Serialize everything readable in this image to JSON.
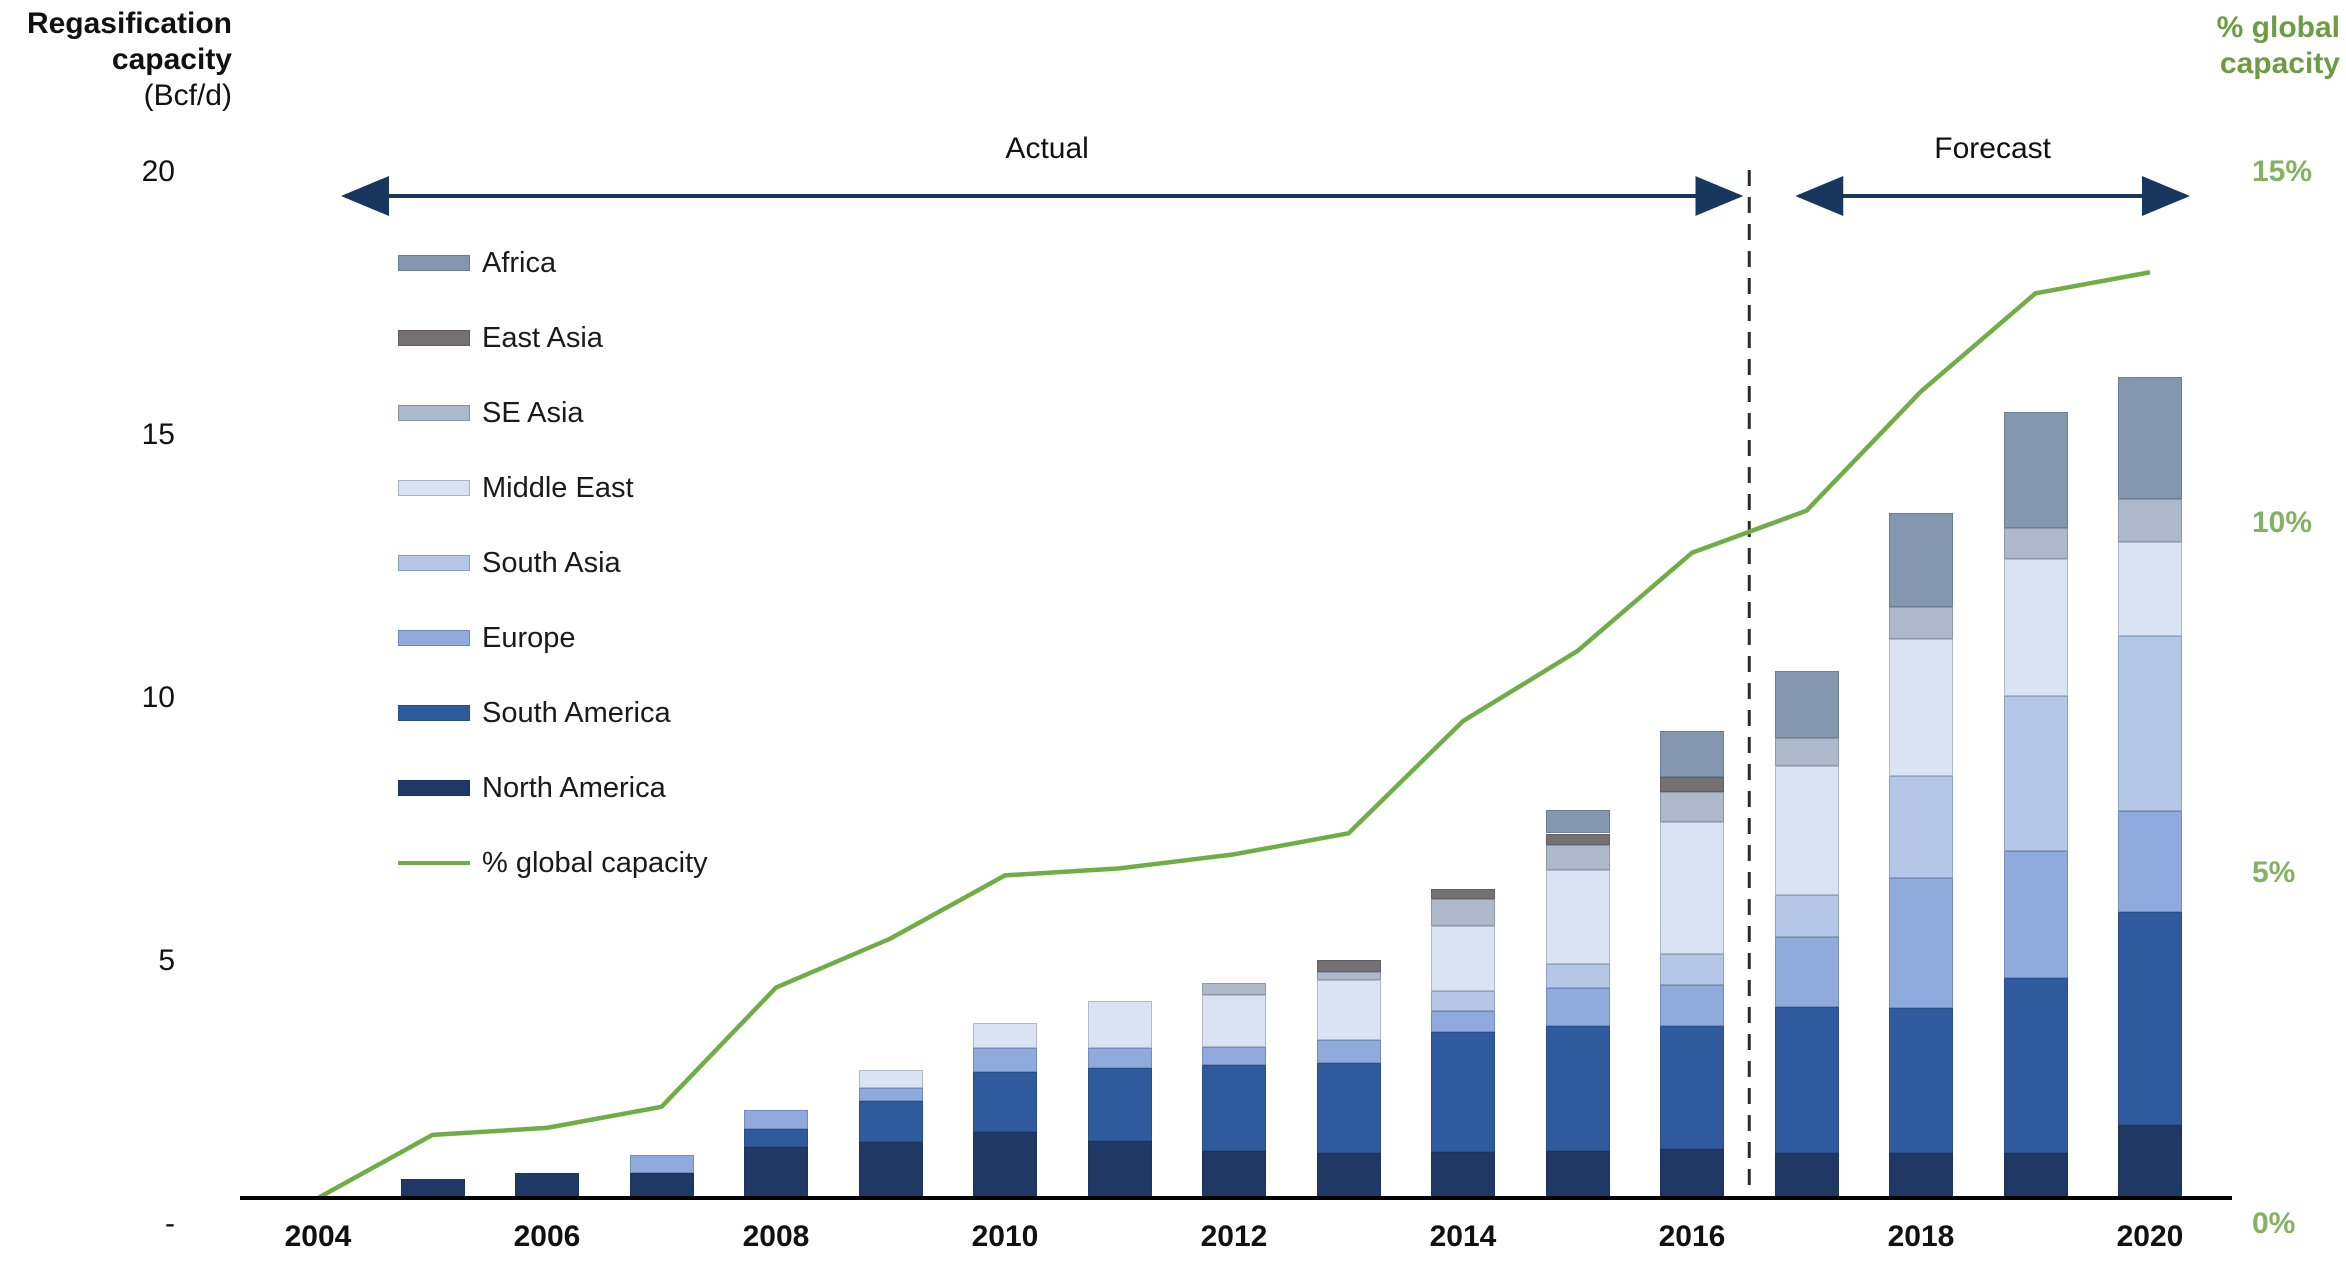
{
  "left_axis": {
    "title_line1": "Regasification",
    "title_line2": "capacity",
    "title_line3": "(Bcf/d)",
    "tick_labels": [
      "20",
      "15",
      "10",
      "5",
      "-"
    ],
    "tick_values": [
      20,
      15,
      10,
      5,
      0
    ]
  },
  "right_axis": {
    "title_line1": "% global",
    "title_line2": "capacity",
    "tick_labels": [
      "15%",
      "10%",
      "5%",
      "0%"
    ],
    "tick_values": [
      15,
      10,
      5,
      0
    ],
    "title_color": "#6d9c45",
    "tick_color": "#85b164"
  },
  "annotations": {
    "actual_label": "Actual",
    "forecast_label": "Forecast",
    "arrow_color": "#17375e",
    "divider_after_category": "2016"
  },
  "chart_data": {
    "type": "bar",
    "stacked": true,
    "grid": false,
    "categories": [
      "2004",
      "2005",
      "2006",
      "2007",
      "2008",
      "2009",
      "2010",
      "2011",
      "2012",
      "2013",
      "2014",
      "2015",
      "2016",
      "2017",
      "2018",
      "2019",
      "2020"
    ],
    "x_shown_tick_labels": [
      "2004",
      "2006",
      "2008",
      "2010",
      "2012",
      "2014",
      "2016",
      "2018",
      "2020"
    ],
    "xlabel": "",
    "ylabel_left": "Regasification capacity (Bcf/d)",
    "ylabel_right": "% global capacity",
    "ylim_left": [
      0,
      20
    ],
    "ylim_right": [
      0,
      15
    ],
    "legend_position": "upper-left-inside",
    "series": [
      {
        "name": "North America",
        "color": "#1F3864",
        "values": [
          0,
          0.36,
          0.47,
          0.47,
          0.97,
          1.06,
          1.25,
          1.08,
          0.89,
          0.85,
          0.87,
          0.9,
          0.93,
          0.85,
          0.85,
          0.85,
          1.39
        ]
      },
      {
        "name": "South America",
        "color": "#305A9E",
        "values": [
          0,
          0,
          0,
          0,
          0.35,
          0.79,
          1.15,
          1.39,
          1.64,
          1.71,
          2.28,
          2.37,
          2.34,
          2.79,
          2.77,
          3.34,
          4.04
        ]
      },
      {
        "name": "Europe",
        "color": "#8FAADC",
        "values": [
          0,
          0,
          0,
          0.35,
          0.35,
          0.25,
          0.45,
          0.38,
          0.35,
          0.44,
          0.4,
          0.73,
          0.78,
          1.33,
          2.47,
          2.41,
          1.93
        ]
      },
      {
        "name": "South Asia",
        "color": "#B4C7E7",
        "values": [
          0,
          0,
          0,
          0,
          0,
          0,
          0,
          0,
          0,
          0,
          0.38,
          0.44,
          0.59,
          0.79,
          1.94,
          2.94,
          3.32
        ]
      },
      {
        "name": "Middle East",
        "color": "#DAE3F3",
        "values": [
          0,
          0,
          0,
          0,
          0,
          0.34,
          0.47,
          0.89,
          0.98,
          1.14,
          1.25,
          1.8,
          2.5,
          2.45,
          2.6,
          2.6,
          1.8
        ]
      },
      {
        "name": "SE Asia",
        "color": "#ADB9CA",
        "values": [
          0,
          0,
          0,
          0,
          0,
          0,
          0,
          0,
          0.22,
          0.15,
          0.5,
          0.47,
          0.57,
          0.53,
          0.6,
          0.6,
          0.8
        ]
      },
      {
        "name": "East Asia",
        "color": "#767171",
        "values": [
          0,
          0,
          0,
          0,
          0,
          0,
          0,
          0,
          0,
          0.23,
          0.19,
          0.22,
          0.29,
          0,
          0,
          0,
          0
        ]
      },
      {
        "name": "Africa",
        "color": "#8497B0",
        "values": [
          0,
          0,
          0,
          0,
          0,
          0,
          0,
          0,
          0,
          0,
          0,
          0.44,
          0.88,
          1.27,
          1.8,
          2.2,
          2.32
        ]
      }
    ],
    "line_series": {
      "name": "% global capacity",
      "color": "#70AD47",
      "axis": "right",
      "values": [
        0,
        0.9,
        1.0,
        1.3,
        3.0,
        3.7,
        4.6,
        4.7,
        4.9,
        5.2,
        6.8,
        7.8,
        9.2,
        9.8,
        11.5,
        12.9,
        13.2
      ]
    },
    "legend_order": [
      "Africa",
      "East Asia",
      "SE Asia",
      "Middle East",
      "South Asia",
      "Europe",
      "South America",
      "North America",
      "% global capacity"
    ]
  }
}
